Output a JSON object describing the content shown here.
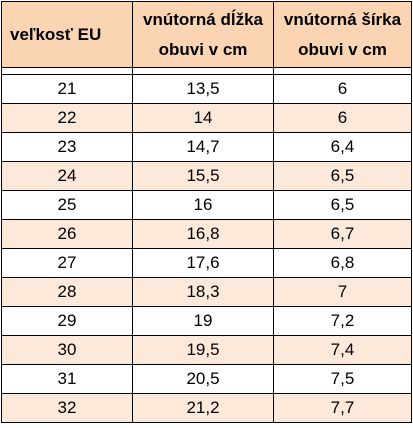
{
  "table": {
    "headers": {
      "size_eu": "veľkosť EU",
      "inner_length_line1": "vnútorná dĺžka",
      "inner_length_line2": "obuvi v cm",
      "inner_width_line1": "vnútorná šírka",
      "inner_width_line2": "obuvi v cm"
    },
    "rows": [
      {
        "size": "21",
        "length": "13,5",
        "width": "6"
      },
      {
        "size": "22",
        "length": "14",
        "width": "6"
      },
      {
        "size": "23",
        "length": "14,7",
        "width": "6,4"
      },
      {
        "size": "24",
        "length": "15,5",
        "width": "6,5"
      },
      {
        "size": "25",
        "length": "16",
        "width": "6,5"
      },
      {
        "size": "26",
        "length": "16,8",
        "width": "6,7"
      },
      {
        "size": "27",
        "length": "17,6",
        "width": "6,8"
      },
      {
        "size": "28",
        "length": "18,3",
        "width": "7"
      },
      {
        "size": "29",
        "length": "19",
        "width": "7,2"
      },
      {
        "size": "30",
        "length": "19,5",
        "width": "7,4"
      },
      {
        "size": "31",
        "length": "20,5",
        "width": "7,5"
      },
      {
        "size": "32",
        "length": "21,2",
        "width": "7,7"
      }
    ],
    "colors": {
      "header_bg": "#fbd4b4",
      "stripe_bg": "#fde9d9",
      "plain_bg": "#ffffff",
      "border": "#000000"
    }
  }
}
